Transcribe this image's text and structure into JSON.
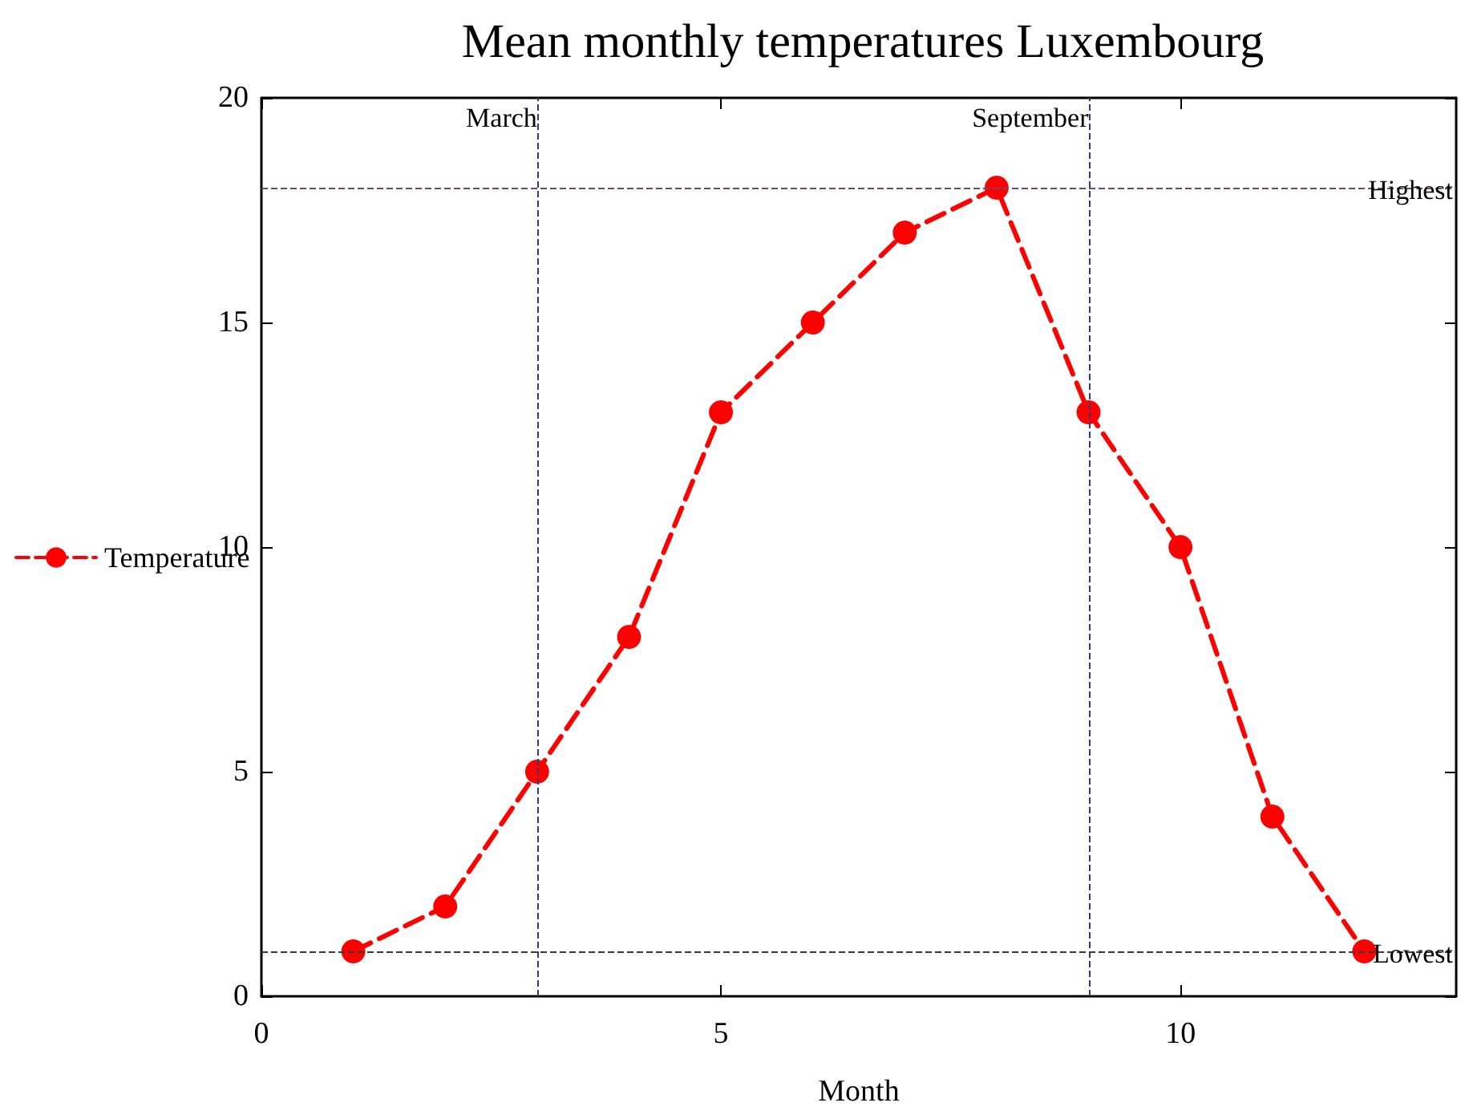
{
  "chart_data": {
    "type": "line",
    "title": "Mean monthly temperatures Luxembourg",
    "xlabel": "Month",
    "x": [
      1,
      2,
      3,
      4,
      5,
      6,
      7,
      8,
      9,
      10,
      11,
      12
    ],
    "series": [
      {
        "name": "Temperature",
        "color": "#ff0000",
        "values": [
          1,
          2,
          5,
          8,
          13,
          15,
          17,
          18,
          13,
          10,
          4,
          1
        ]
      }
    ],
    "xlim": [
      0,
      13
    ],
    "xticks": [
      0,
      5,
      10
    ],
    "ylim": [
      0,
      20
    ],
    "yticks": [
      0,
      5,
      10,
      15,
      20
    ],
    "ref_lines": [
      {
        "axis": "x",
        "value": 3,
        "label": "March",
        "color": "#3a3a6a",
        "line_style": "dashed"
      },
      {
        "axis": "x",
        "value": 9,
        "label": "September",
        "color": "#3a3a6a",
        "line_style": "dashed"
      },
      {
        "axis": "y",
        "value": 18,
        "label": "Highest",
        "color": "#6a4a6a",
        "line_style": "dashed"
      },
      {
        "axis": "y",
        "value": 1,
        "label": "Lowest",
        "color": "#3a3a3a",
        "line_style": "dashed"
      }
    ],
    "grid": false,
    "legend": "left",
    "marker": "circle",
    "line_style": "dashed"
  }
}
